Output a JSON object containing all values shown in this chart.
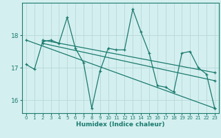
{
  "xlabel": "Humidex (Indice chaleur)",
  "xlim": [
    -0.5,
    23.5
  ],
  "ylim": [
    15.6,
    19.0
  ],
  "yticks": [
    16,
    17,
    18
  ],
  "xticks": [
    0,
    1,
    2,
    3,
    4,
    5,
    6,
    7,
    8,
    9,
    10,
    11,
    12,
    13,
    14,
    15,
    16,
    17,
    18,
    19,
    20,
    21,
    22,
    23
  ],
  "bg_color": "#d4efef",
  "grid_color": "#b8d8d8",
  "line_color": "#1a7a6e",
  "lines": [
    {
      "x": [
        0,
        1,
        2,
        3,
        4,
        5,
        6,
        7,
        8,
        9,
        10,
        11,
        12,
        13,
        14,
        15,
        16,
        17,
        18,
        19,
        20,
        21,
        22,
        23
      ],
      "y": [
        17.1,
        16.95,
        17.8,
        17.85,
        17.75,
        18.55,
        17.6,
        17.15,
        15.75,
        16.9,
        17.6,
        17.55,
        17.55,
        18.8,
        18.1,
        17.45,
        16.45,
        16.4,
        16.25,
        17.45,
        17.5,
        17.0,
        16.8,
        15.75
      ]
    },
    {
      "x": [
        2,
        23
      ],
      "y": [
        17.85,
        16.85
      ]
    },
    {
      "x": [
        2,
        23
      ],
      "y": [
        17.75,
        16.6
      ]
    },
    {
      "x": [
        0,
        23
      ],
      "y": [
        17.85,
        15.75
      ]
    }
  ]
}
